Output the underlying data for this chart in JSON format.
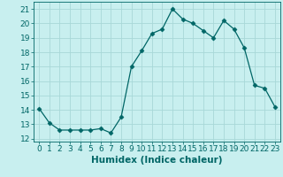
{
  "x": [
    0,
    1,
    2,
    3,
    4,
    5,
    6,
    7,
    8,
    9,
    10,
    11,
    12,
    13,
    14,
    15,
    16,
    17,
    18,
    19,
    20,
    21,
    22,
    23
  ],
  "y": [
    14.1,
    13.1,
    12.6,
    12.6,
    12.6,
    12.6,
    12.7,
    12.4,
    13.5,
    17.0,
    18.1,
    19.3,
    19.6,
    21.0,
    20.3,
    20.0,
    19.5,
    19.0,
    20.2,
    19.6,
    18.3,
    15.7,
    15.5,
    14.2
  ],
  "line_color": "#006666",
  "marker": "D",
  "marker_size": 2.5,
  "background_color": "#c8efef",
  "grid_color": "#a8d8d8",
  "xlabel": "Humidex (Indice chaleur)",
  "ylim": [
    11.8,
    21.5
  ],
  "xlim": [
    -0.5,
    23.5
  ],
  "yticks": [
    12,
    13,
    14,
    15,
    16,
    17,
    18,
    19,
    20,
    21
  ],
  "xticks": [
    0,
    1,
    2,
    3,
    4,
    5,
    6,
    7,
    8,
    9,
    10,
    11,
    12,
    13,
    14,
    15,
    16,
    17,
    18,
    19,
    20,
    21,
    22,
    23
  ],
  "tick_label_fontsize": 6.5,
  "xlabel_fontsize": 7.5
}
